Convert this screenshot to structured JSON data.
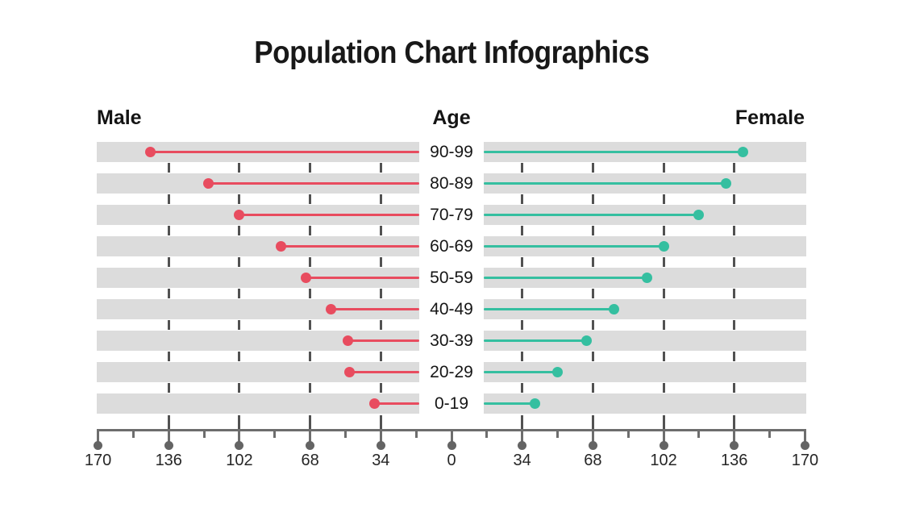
{
  "title": "Population Chart Infographics",
  "labels": {
    "male": "Male",
    "age": "Age",
    "female": "Female"
  },
  "colors": {
    "male": "#E84C5F",
    "female": "#35BFA0",
    "row_band": "#DCDCDC",
    "gridline": "#525252",
    "axis": "#6D6D6D",
    "axis_dot": "#646464",
    "text": "#161616"
  },
  "chart_data": {
    "type": "bar",
    "subtype": "mirrored-lollipop-population-pyramid",
    "title": "Population Chart Infographics",
    "categories": [
      "90-99",
      "80-89",
      "70-79",
      "60-69",
      "50-59",
      "40-49",
      "30-39",
      "20-29",
      "0-19"
    ],
    "series": [
      {
        "name": "Male",
        "side": "left",
        "color": "#E84C5F",
        "values": [
          145,
          117,
          102,
          82,
          70,
          58,
          50,
          49,
          37
        ]
      },
      {
        "name": "Female",
        "side": "right",
        "color": "#35BFA0",
        "values": [
          140,
          132,
          119,
          102,
          94,
          78,
          65,
          51,
          40
        ]
      }
    ],
    "axis": {
      "tick_labels": [
        "170",
        "136",
        "102",
        "68",
        "34",
        "0",
        "34",
        "68",
        "102",
        "136",
        "170"
      ],
      "tick_step": 34,
      "max": 170,
      "gridline_values": [
        34,
        68,
        102,
        136
      ],
      "grid": "dashed-vertical",
      "legend_position": "none"
    },
    "layout_hint": "male values extend left, female values extend right, shared age labels in center gap"
  }
}
